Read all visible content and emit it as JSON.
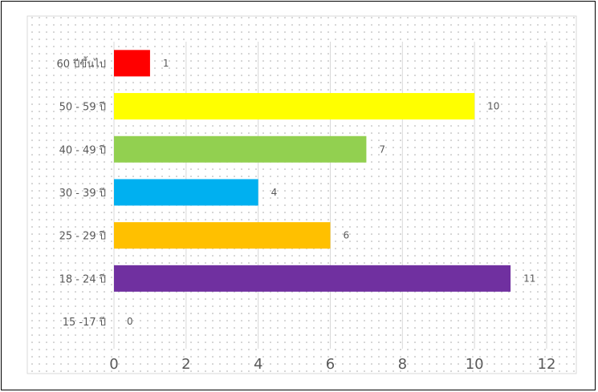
{
  "chart_data": {
    "type": "bar",
    "orientation": "horizontal",
    "categories": [
      "60 ปีขึ้นไป",
      "50 - 59 ปี",
      "40 - 49 ปี",
      "30 - 39 ปี",
      "25 - 29 ปี",
      "18 - 24 ปี",
      "15 -17 ปี"
    ],
    "values": [
      1,
      10,
      7,
      4,
      6,
      11,
      0
    ],
    "colors": [
      "#ff0000",
      "#ffff00",
      "#92d050",
      "#00b0f0",
      "#ffc000",
      "#7030a0",
      "#ffffff"
    ],
    "xlim": [
      0,
      12
    ],
    "xticks": [
      "0",
      "2",
      "4",
      "6",
      "8",
      "10",
      "12"
    ],
    "data_labels": true,
    "grid": "vertical",
    "background_pattern": "dotted",
    "title": "",
    "xlabel": "",
    "ylabel": ""
  }
}
